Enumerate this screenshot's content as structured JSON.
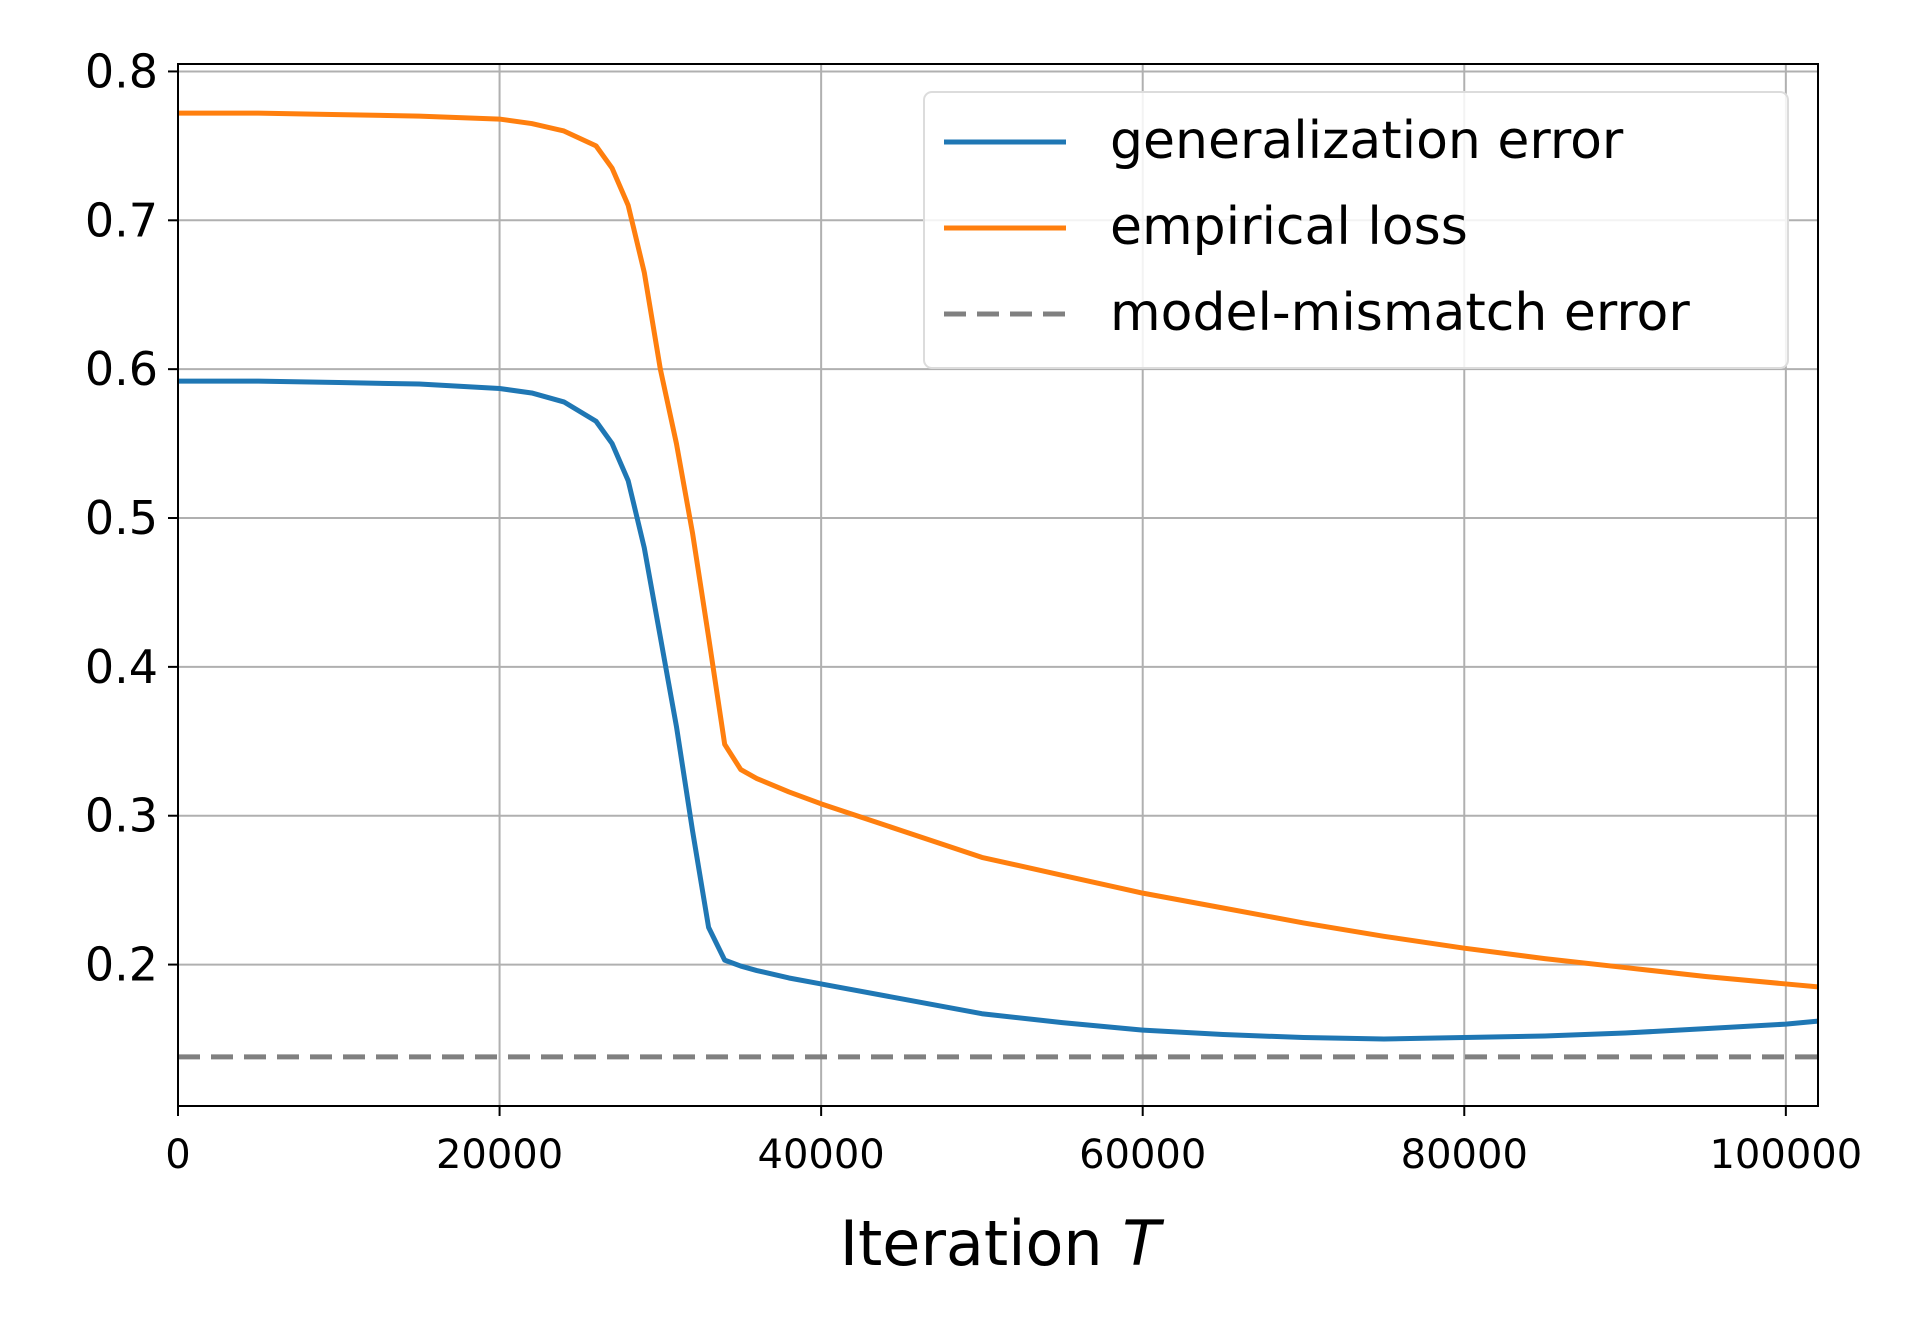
{
  "chart_data": {
    "type": "line",
    "title": "",
    "xlabel": "Iteration",
    "xlabel_var": "T",
    "ylabel": "",
    "xlim": [
      0,
      102000
    ],
    "ylim": [
      0.105,
      0.805
    ],
    "x_ticks": [
      0,
      20000,
      40000,
      60000,
      80000,
      100000
    ],
    "x_tick_labels": [
      "0",
      "20000",
      "40000",
      "60000",
      "80000",
      "100000"
    ],
    "y_ticks": [
      0.2,
      0.3,
      0.4,
      0.5,
      0.6,
      0.7,
      0.8
    ],
    "y_tick_labels": [
      "0.2",
      "0.3",
      "0.4",
      "0.5",
      "0.6",
      "0.7",
      "0.8"
    ],
    "grid": true,
    "legend_position": "top-right",
    "series": [
      {
        "name": "generalization error",
        "color": "#1f77b4",
        "style": "solid",
        "x": [
          0,
          5000,
          10000,
          15000,
          20000,
          22000,
          24000,
          26000,
          27000,
          28000,
          29000,
          30000,
          30500,
          31000,
          32000,
          33000,
          34000,
          35000,
          36000,
          38000,
          40000,
          45000,
          50000,
          55000,
          60000,
          65000,
          70000,
          75000,
          80000,
          85000,
          90000,
          95000,
          100000,
          102000
        ],
        "y": [
          0.592,
          0.592,
          0.591,
          0.59,
          0.587,
          0.584,
          0.578,
          0.565,
          0.55,
          0.525,
          0.48,
          0.42,
          0.39,
          0.36,
          0.29,
          0.225,
          0.203,
          0.199,
          0.196,
          0.191,
          0.187,
          0.177,
          0.167,
          0.161,
          0.156,
          0.153,
          0.151,
          0.15,
          0.151,
          0.152,
          0.154,
          0.157,
          0.16,
          0.162
        ]
      },
      {
        "name": "empirical loss",
        "color": "#ff7f0e",
        "style": "solid",
        "x": [
          0,
          5000,
          10000,
          15000,
          20000,
          22000,
          24000,
          26000,
          27000,
          28000,
          29000,
          30000,
          31000,
          32000,
          33000,
          34000,
          35000,
          36000,
          38000,
          40000,
          45000,
          50000,
          55000,
          60000,
          65000,
          70000,
          75000,
          80000,
          85000,
          90000,
          95000,
          100000,
          102000
        ],
        "y": [
          0.772,
          0.772,
          0.771,
          0.77,
          0.768,
          0.765,
          0.76,
          0.75,
          0.735,
          0.71,
          0.665,
          0.6,
          0.55,
          0.49,
          0.42,
          0.348,
          0.331,
          0.325,
          0.316,
          0.308,
          0.29,
          0.272,
          0.26,
          0.248,
          0.238,
          0.228,
          0.219,
          0.211,
          0.204,
          0.198,
          0.192,
          0.187,
          0.185
        ]
      },
      {
        "name": "model-mismatch error",
        "color": "#808080",
        "style": "dashed",
        "x": [
          0,
          102000
        ],
        "y": [
          0.138,
          0.138
        ]
      }
    ]
  }
}
